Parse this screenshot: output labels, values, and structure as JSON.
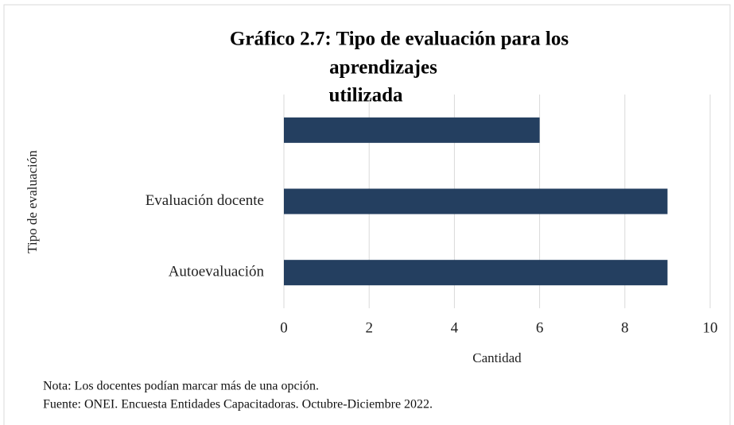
{
  "chart_data": {
    "type": "barh",
    "title": [
      "Gráfico 2.7: Tipo de evaluación para los",
      "aprendizajes",
      "utilizada"
    ],
    "categories": [
      null,
      "Evaluación docente",
      "Autoevaluación"
    ],
    "values": [
      6,
      9,
      9
    ],
    "color": "#243f60",
    "xlim": [
      0,
      10
    ],
    "xticks": [
      0,
      2,
      4,
      6,
      8,
      10
    ],
    "grid": true,
    "xlabel": "Cantidad",
    "ylabel": "Tipo de evaluación",
    "notes": [
      "Nota: Los docentes podían marcar más de una opción.",
      "Fuente: ONEI. Encuesta Entidades Capacitadoras. Octubre-Diciembre 2022."
    ]
  }
}
